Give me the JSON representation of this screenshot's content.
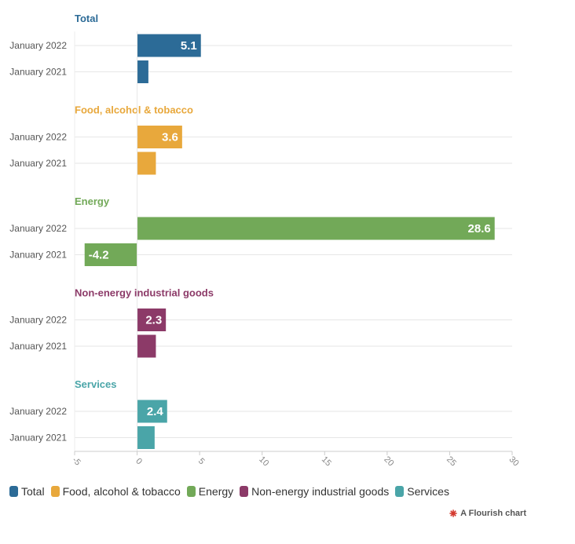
{
  "chart_data": {
    "type": "bar",
    "orientation": "horizontal",
    "layout": "small-multiples",
    "xlim": [
      -5,
      30
    ],
    "x_ticks": [
      "-5",
      "0",
      "5",
      "10",
      "15",
      "20",
      "25",
      "30"
    ],
    "categories": [
      "January 2022",
      "January 2021"
    ],
    "groups": [
      {
        "title": "Total",
        "color": "#2c6b97",
        "rows": [
          {
            "label": "January 2022",
            "value": 5.1,
            "value_label": "5.1"
          },
          {
            "label": "January 2021",
            "value": 0.9,
            "value_label": ""
          }
        ]
      },
      {
        "title": "Food, alcohol & tobacco",
        "color": "#e8a83c",
        "rows": [
          {
            "label": "January 2022",
            "value": 3.6,
            "value_label": "3.6"
          },
          {
            "label": "January 2021",
            "value": 1.5,
            "value_label": ""
          }
        ]
      },
      {
        "title": "Energy",
        "color": "#72a958",
        "rows": [
          {
            "label": "January 2022",
            "value": 28.6,
            "value_label": "28.6"
          },
          {
            "label": "January 2021",
            "value": -4.2,
            "value_label": "-4.2"
          }
        ]
      },
      {
        "title": "Non-energy industrial goods",
        "color": "#8c3a68",
        "rows": [
          {
            "label": "January 2022",
            "value": 2.3,
            "value_label": "2.3"
          },
          {
            "label": "January 2021",
            "value": 1.5,
            "value_label": ""
          }
        ]
      },
      {
        "title": "Services",
        "color": "#4aa5a8",
        "rows": [
          {
            "label": "January 2022",
            "value": 2.4,
            "value_label": "2.4"
          },
          {
            "label": "January 2021",
            "value": 1.4,
            "value_label": ""
          }
        ]
      }
    ],
    "grid": true,
    "legend_position": "bottom-left"
  },
  "legend": [
    {
      "label": "Total",
      "color": "#2c6b97"
    },
    {
      "label": "Food, alcohol & tobacco",
      "color": "#e8a83c"
    },
    {
      "label": "Energy",
      "color": "#72a958"
    },
    {
      "label": "Non-energy industrial goods",
      "color": "#8c3a68"
    },
    {
      "label": "Services",
      "color": "#4aa5a8"
    }
  ],
  "footer": {
    "label": "A Flourish chart",
    "icon": "flourish-logo-icon",
    "icon_color": "#d43a2f"
  }
}
